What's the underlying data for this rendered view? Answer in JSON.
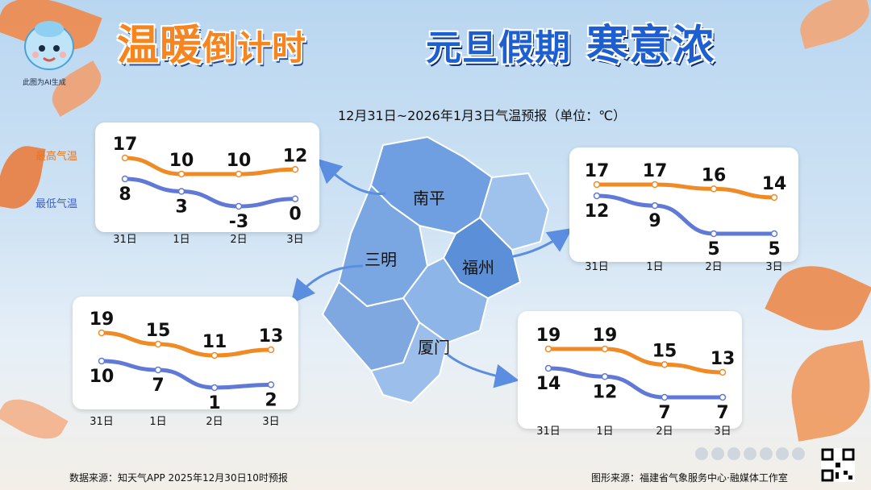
{
  "header": {
    "title_left_a": "温暖",
    "title_left_b": "倒计时",
    "title_right_a": "元旦假期",
    "title_right_b": "寒意浓",
    "ai_note": "此图为AI生成",
    "subtitle": "12月31日~2026年1月3日气温预报（单位：℃）"
  },
  "legend": {
    "high": "最高气温",
    "low": "最低气温"
  },
  "colors": {
    "high": "#f08a24",
    "low": "#6179d6",
    "map": "#6b9fde",
    "arrow": "#5b8ee0"
  },
  "cities": [
    "南平",
    "三明",
    "福州",
    "厦门"
  ],
  "footer": {
    "source_left": "数据来源：知天气APP 2025年12月30日10时预报",
    "source_right": "图形来源：福建省气象服务中心·融媒体工作室"
  },
  "chart_data": [
    {
      "type": "line",
      "city": "南平",
      "categories": [
        "31日",
        "1日",
        "2日",
        "3日"
      ],
      "series": [
        {
          "name": "最高气温",
          "values": [
            17,
            10,
            10,
            12
          ]
        },
        {
          "name": "最低气温",
          "values": [
            8,
            3,
            -3,
            0
          ]
        }
      ]
    },
    {
      "type": "line",
      "city": "福州",
      "categories": [
        "31日",
        "1日",
        "2日",
        "3日"
      ],
      "series": [
        {
          "name": "最高气温",
          "values": [
            17,
            17,
            16,
            14
          ]
        },
        {
          "name": "最低气温",
          "values": [
            12,
            9,
            5,
            5
          ]
        }
      ]
    },
    {
      "type": "line",
      "city": "三明",
      "categories": [
        "31日",
        "1日",
        "2日",
        "3日"
      ],
      "series": [
        {
          "name": "最高气温",
          "values": [
            19,
            15,
            11,
            13
          ]
        },
        {
          "name": "最低气温",
          "values": [
            10,
            7,
            1,
            2
          ]
        }
      ]
    },
    {
      "type": "line",
      "city": "厦门",
      "categories": [
        "31日",
        "1日",
        "2日",
        "3日"
      ],
      "series": [
        {
          "name": "最高气温",
          "values": [
            19,
            19,
            15,
            13
          ]
        },
        {
          "name": "最低气温",
          "values": [
            14,
            12,
            7,
            7
          ]
        }
      ]
    }
  ]
}
